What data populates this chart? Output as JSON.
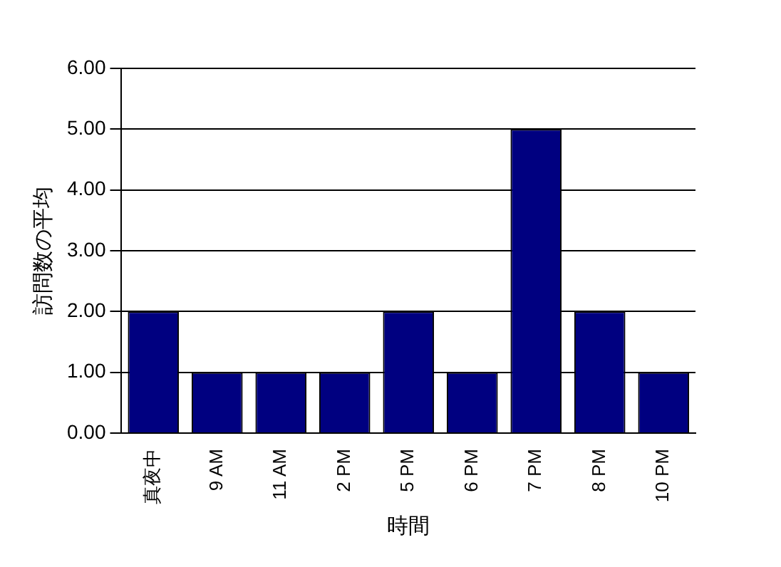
{
  "chart_data": {
    "type": "bar",
    "xlabel": "時間",
    "ylabel": "訪問数の平均",
    "categories": [
      "真夜中",
      "9 AM",
      "11 AM",
      "2 PM",
      "5 PM",
      "6 PM",
      "7 PM",
      "8 PM",
      "10 PM"
    ],
    "values": [
      2,
      1,
      1,
      1,
      2,
      1,
      5,
      2,
      1
    ],
    "color": "#000080",
    "ylim": [
      0,
      6
    ],
    "yticks": [
      {
        "value": 0,
        "label": "0.00"
      },
      {
        "value": 1,
        "label": "1.00"
      },
      {
        "value": 2,
        "label": "2.00"
      },
      {
        "value": 3,
        "label": "3.00"
      },
      {
        "value": 4,
        "label": "4.00"
      },
      {
        "value": 5,
        "label": "5.00"
      },
      {
        "value": 6,
        "label": "6.00"
      }
    ],
    "grid": "y",
    "legend": false
  }
}
